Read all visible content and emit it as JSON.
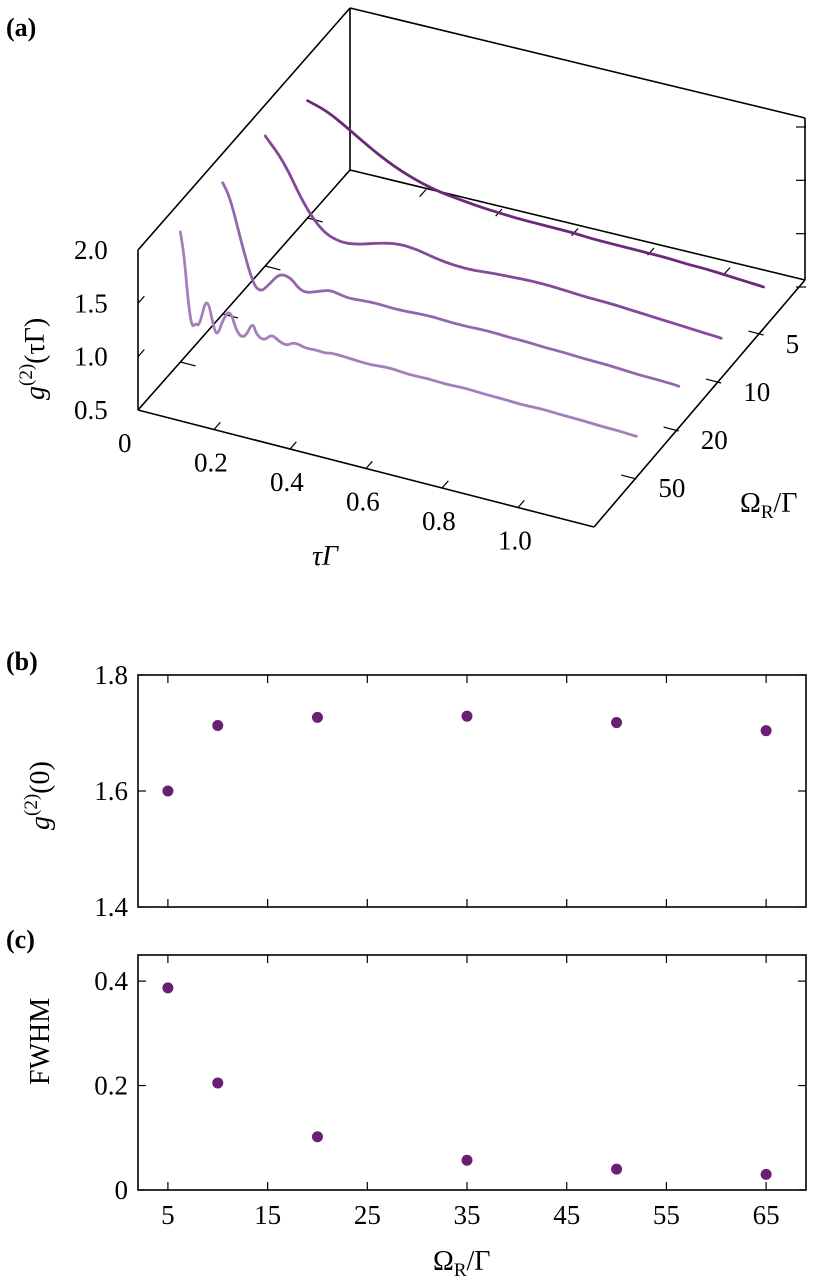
{
  "chart_data": [
    {
      "panel": "(a)",
      "type": "line",
      "view": "3d-waterfall",
      "xlabel": "τΓ",
      "ylabel": "Ω_R/Γ",
      "zlabel": "g^(2)(τΓ)",
      "x_ticks": [
        "0",
        "0.2",
        "0.4",
        "0.6",
        "0.8",
        "1.0"
      ],
      "y_ticks": [
        "5",
        "10",
        "20",
        "50"
      ],
      "z_ticks": [
        "0.5",
        "1.0",
        "1.5",
        "2.0"
      ],
      "xlim": [
        0,
        1.2
      ],
      "zlim": [
        0.5,
        2.0
      ],
      "series": [
        {
          "omega": 5,
          "color": "#6a2a78",
          "x": [
            0,
            0.05,
            0.1,
            0.15,
            0.2,
            0.25,
            0.3,
            0.35,
            0.4,
            0.45,
            0.5,
            0.55,
            0.6,
            0.65,
            0.7,
            0.75,
            0.8,
            0.85,
            0.9,
            0.95,
            1.0,
            1.05,
            1.1,
            1.15,
            1.2
          ],
          "z": [
            1.6,
            1.55,
            1.45,
            1.34,
            1.24,
            1.16,
            1.1,
            1.06,
            1.04,
            1.02,
            1.01,
            1.0,
            1.0,
            1.0,
            1.0,
            0.99,
            0.99,
            0.99,
            0.99,
            0.99,
            0.98,
            0.98,
            0.97,
            0.96,
            0.95
          ]
        },
        {
          "omega": 10,
          "color": "#84499a",
          "x": [
            0,
            0.05,
            0.1,
            0.15,
            0.2,
            0.25,
            0.3,
            0.35,
            0.4,
            0.45,
            0.5,
            0.55,
            0.6,
            0.65,
            0.7,
            0.75,
            0.8,
            0.85,
            0.9,
            0.95,
            1.0,
            1.05,
            1.1,
            1.15,
            1.2
          ],
          "z": [
            1.72,
            1.52,
            1.18,
            0.96,
            0.9,
            0.93,
            0.99,
            1.03,
            1.02,
            0.98,
            0.96,
            0.96,
            0.98,
            0.99,
            1.0,
            1.0,
            0.99,
            0.98,
            0.98,
            0.97,
            0.96,
            0.95,
            0.94,
            0.93,
            0.92
          ]
        },
        {
          "omega": 20,
          "color": "#9466aa",
          "x": [
            0,
            0.02,
            0.05,
            0.08,
            0.1,
            0.12,
            0.15,
            0.18,
            0.2,
            0.22,
            0.25,
            0.28,
            0.3,
            0.33,
            0.36,
            0.4,
            0.45,
            0.5,
            0.55,
            0.6,
            0.65,
            0.7,
            0.75,
            0.8,
            0.85,
            0.9,
            0.95,
            1.0,
            1.05,
            1.1,
            1.15,
            1.2
          ],
          "z": [
            1.73,
            1.6,
            1.2,
            0.85,
            0.8,
            0.88,
            1.02,
            1.0,
            0.92,
            0.9,
            0.94,
            0.98,
            0.97,
            0.95,
            0.96,
            0.97,
            0.96,
            0.97,
            0.98,
            0.97,
            0.97,
            0.98,
            0.97,
            0.97,
            0.96,
            0.96,
            0.95,
            0.95,
            0.94,
            0.93,
            0.93,
            0.92
          ]
        },
        {
          "omega": 50,
          "color": "#a57fba",
          "x": [
            0,
            0.01,
            0.02,
            0.03,
            0.04,
            0.05,
            0.07,
            0.09,
            0.1,
            0.11,
            0.13,
            0.15,
            0.17,
            0.19,
            0.2,
            0.22,
            0.24,
            0.26,
            0.28,
            0.3,
            0.33,
            0.36,
            0.38,
            0.4,
            0.45,
            0.5,
            0.55,
            0.6,
            0.65,
            0.7,
            0.75,
            0.8,
            0.85,
            0.9,
            0.95,
            1.0,
            1.05,
            1.1,
            1.15,
            1.2
          ],
          "z": [
            1.72,
            1.5,
            1.1,
            0.85,
            0.9,
            0.88,
            1.2,
            0.86,
            0.86,
            0.98,
            1.12,
            0.9,
            0.88,
            1.05,
            0.94,
            0.9,
            0.98,
            0.93,
            0.91,
            0.96,
            0.93,
            0.94,
            0.93,
            0.95,
            0.94,
            0.93,
            0.95,
            0.93,
            0.94,
            0.93,
            0.94,
            0.93,
            0.93,
            0.92,
            0.93,
            0.92,
            0.92,
            0.91,
            0.91,
            0.9
          ]
        }
      ]
    },
    {
      "panel": "(b)",
      "type": "scatter",
      "xlabel": "",
      "ylabel": "g^(2)(0)",
      "xlim": [
        2,
        69
      ],
      "ylim": [
        1.4,
        1.8
      ],
      "y_ticks": [
        "1.4",
        "1.6",
        "1.8"
      ],
      "color": "#6a1f72",
      "x": [
        5,
        10,
        20,
        35,
        50,
        65
      ],
      "y": [
        1.6,
        1.713,
        1.727,
        1.729,
        1.718,
        1.704
      ]
    },
    {
      "panel": "(c)",
      "type": "scatter",
      "xlabel": "Ω_R/Γ",
      "ylabel": "FWHM",
      "xlim": [
        2,
        69
      ],
      "ylim": [
        0,
        0.45
      ],
      "x_ticks": [
        "5",
        "15",
        "25",
        "35",
        "45",
        "55",
        "65"
      ],
      "y_ticks": [
        "0",
        "0.2",
        "0.4"
      ],
      "color": "#6a1f72",
      "x": [
        5,
        10,
        20,
        35,
        50,
        65
      ],
      "y": [
        0.387,
        0.205,
        0.102,
        0.057,
        0.04,
        0.03
      ]
    }
  ],
  "labels": {
    "panel_a": "(a)",
    "panel_b": "(b)",
    "panel_c": "(c)",
    "a_z_sym": "g",
    "a_z_sup": "(2)",
    "a_z_arg": "(τΓ)",
    "a_x_title": "τΓ",
    "a_y_main": "Ω",
    "a_y_sub": "R",
    "a_y_rest": "/Γ",
    "b_y_sym": "g",
    "b_y_sup": "(2)",
    "b_y_arg": "(0)",
    "c_y_title": "FWHM",
    "c_x_main": "Ω",
    "c_x_sub": "R",
    "c_x_rest": "/Γ"
  }
}
